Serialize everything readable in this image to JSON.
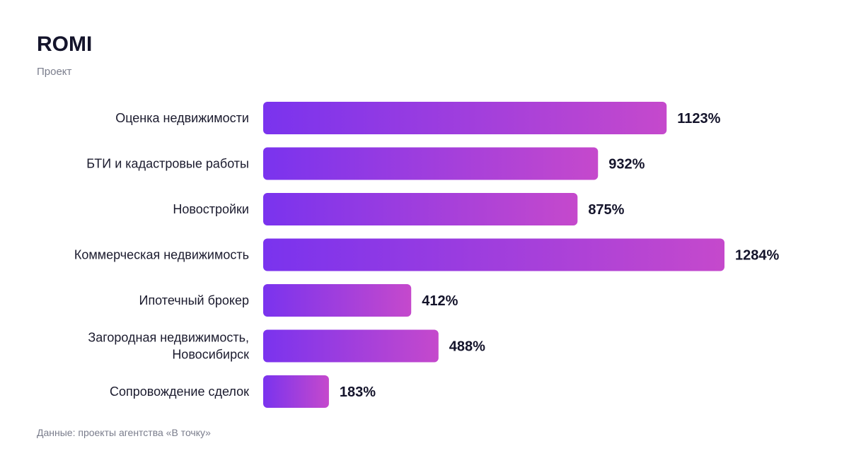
{
  "header": {
    "title": "ROMI",
    "subtitle": "Проект"
  },
  "footer": {
    "source": "Данные: проекты агентства «В точку»"
  },
  "colors": {
    "bar_start": "#7a33ee",
    "bar_end": "#c549cc"
  },
  "chart_data": {
    "type": "bar",
    "orientation": "horizontal",
    "title": "ROMI",
    "subtitle": "Проект",
    "categories": [
      [
        "Оценка недвижимости"
      ],
      [
        "БТИ и кадастровые работы"
      ],
      [
        "Новостройки"
      ],
      [
        "Коммерческая недвижимость"
      ],
      [
        "Ипотечный брокер"
      ],
      [
        "Загородная недвижимость,",
        "Новосибирск"
      ],
      [
        "Сопровождение сделок"
      ]
    ],
    "values": [
      1123,
      932,
      875,
      1284,
      412,
      488,
      183
    ],
    "value_labels": [
      "1123%",
      "932%",
      "875%",
      "1284%",
      "412%",
      "488%",
      "183%"
    ],
    "unit": "%",
    "xlim": [
      0,
      1284
    ],
    "grid": false,
    "legend": "none"
  }
}
